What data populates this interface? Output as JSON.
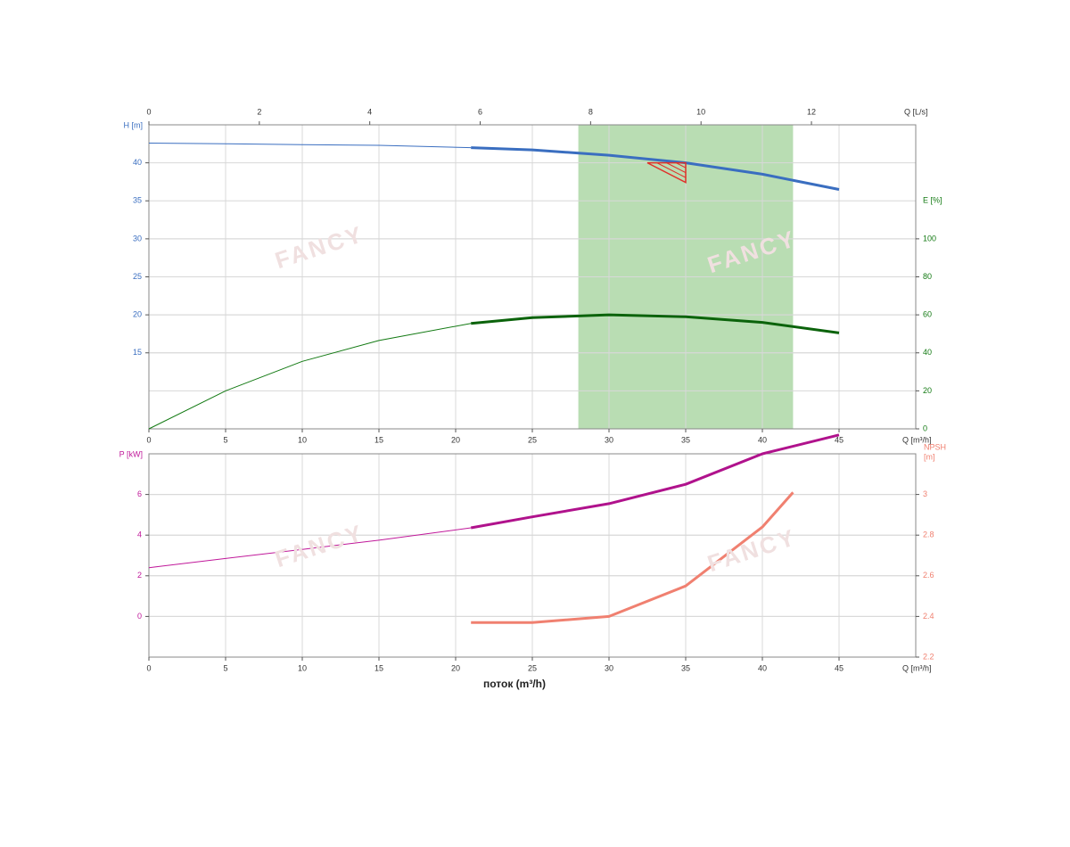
{
  "watermark": "FANCY",
  "chart_data": [
    {
      "type": "line",
      "xlabel": "Q [m³/h]",
      "ylabel": "H [m]",
      "y2label": "E [%]",
      "x2label": "Q [L/s]",
      "xlim": [
        0,
        50
      ],
      "xticks": [
        0,
        5,
        10,
        15,
        20,
        25,
        30,
        35,
        40,
        45
      ],
      "x2lim": [
        0,
        13.889
      ],
      "x2ticks": [
        0,
        2,
        4,
        6,
        8,
        10,
        12
      ],
      "ylim": [
        5,
        45
      ],
      "yticks": [
        15,
        20,
        25,
        30,
        35,
        40
      ],
      "y2lim": [
        0,
        160
      ],
      "y2ticks": [
        0,
        20,
        40,
        60,
        80,
        100
      ],
      "grid": true,
      "band": {
        "x": [
          28,
          42
        ],
        "color": "#a8d5a0"
      },
      "duty_point": {
        "x": 35,
        "y": 40,
        "color": "#e0302a"
      },
      "series": [
        {
          "color": "#3a6ec0",
          "width": 1,
          "x": [
            0,
            5,
            10,
            15,
            21
          ],
          "values": [
            42.6,
            42.5,
            42.4,
            42.3,
            42.0
          ]
        },
        {
          "color": "#3a6ec0",
          "width": 3,
          "x": [
            21,
            25,
            30,
            35,
            40,
            45
          ],
          "values": [
            42.0,
            41.7,
            41.0,
            40.0,
            38.5,
            36.5
          ]
        },
        {
          "color": "#137a13",
          "width": 1,
          "axis": "y2",
          "x": [
            0,
            5,
            10,
            15,
            21
          ],
          "values": [
            0,
            20,
            35.5,
            46.5,
            55.5
          ]
        },
        {
          "color": "#0b630b",
          "width": 3,
          "axis": "y2",
          "x": [
            21,
            25,
            30,
            35,
            40,
            45
          ],
          "values": [
            55.5,
            58.5,
            60,
            59,
            56,
            50.5
          ]
        }
      ]
    },
    {
      "type": "line",
      "xlabel": "Q [m³/h]",
      "xtitle": "поток (m³/h)",
      "ylabel": "P [kW]",
      "y2label": [
        "NPSH",
        "[m]"
      ],
      "xlim": [
        0,
        50
      ],
      "xticks": [
        0,
        5,
        10,
        15,
        20,
        25,
        30,
        35,
        40,
        45
      ],
      "ylim": [
        -2,
        8
      ],
      "yticks": [
        0,
        2,
        4,
        6
      ],
      "y2lim": [
        2.2,
        3.2
      ],
      "y2ticks": [
        2.2,
        2.4,
        2.6,
        2.8,
        3
      ],
      "grid": true,
      "series": [
        {
          "color": "#c0189a",
          "width": 1,
          "x": [
            0,
            5,
            10,
            15,
            21
          ],
          "values": [
            2.4,
            2.85,
            3.3,
            3.75,
            4.36
          ]
        },
        {
          "color": "#b0128c",
          "width": 3,
          "x": [
            21,
            25,
            30,
            35,
            40,
            45
          ],
          "values": [
            4.36,
            4.9,
            5.55,
            6.5,
            8.0,
            8.93
          ]
        },
        {
          "color": "#f08070",
          "width": 3,
          "axis": "y2",
          "x": [
            21,
            25,
            30,
            35,
            40,
            42
          ],
          "values": [
            2.37,
            2.37,
            2.4,
            2.55,
            2.84,
            3.01
          ]
        }
      ]
    }
  ]
}
